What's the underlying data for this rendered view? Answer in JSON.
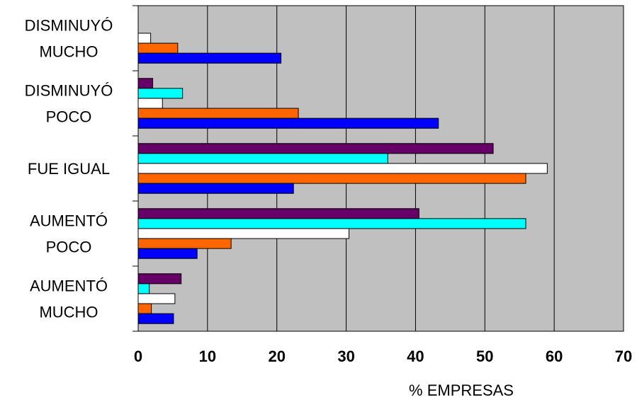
{
  "chart_data": {
    "type": "bar",
    "orientation": "horizontal",
    "categories": [
      [
        "DISMINUYÓ",
        "MUCHO"
      ],
      [
        "DISMINUYÓ",
        "POCO"
      ],
      [
        "FUE IGUAL"
      ],
      [
        "AUMENTÓ",
        "POCO"
      ],
      [
        "AUMENTÓ",
        "MUCHO"
      ]
    ],
    "xlabel": "% EMPRESAS",
    "xlim": [
      0,
      70
    ],
    "xticks": [
      0,
      10,
      20,
      30,
      40,
      50,
      60,
      70
    ],
    "grid": true,
    "plot_background": "#C0C0C0",
    "series": [
      {
        "color": "#660066",
        "values": [
          null,
          2.1,
          51.2,
          40.5,
          6.2
        ]
      },
      {
        "color": "#00FFFF",
        "values": [
          null,
          6.4,
          36.0,
          55.9,
          1.6
        ]
      },
      {
        "color": "#FFFFFF",
        "values": [
          1.8,
          3.5,
          59.0,
          30.4,
          5.3
        ]
      },
      {
        "color": "#FF6600",
        "values": [
          5.7,
          23.1,
          55.9,
          13.4,
          1.9
        ]
      },
      {
        "color": "#0000FF",
        "values": [
          20.6,
          43.3,
          22.4,
          8.5,
          5.1
        ]
      }
    ]
  }
}
